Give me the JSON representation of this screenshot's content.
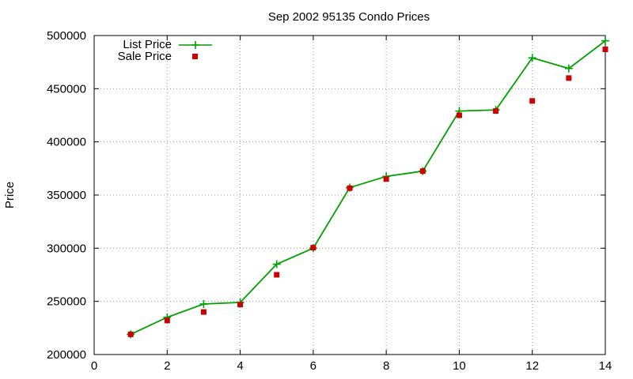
{
  "chart_data": {
    "type": "line",
    "title": "Sep 2002 95135 Condo Prices",
    "xlabel": "",
    "ylabel": "Price",
    "xlim": [
      0,
      14
    ],
    "ylim": [
      200000,
      500000
    ],
    "xticks": [
      "0",
      "2",
      "4",
      "6",
      "8",
      "10",
      "12",
      "14"
    ],
    "yticks": [
      "200000",
      "250000",
      "300000",
      "350000",
      "400000",
      "450000",
      "500000"
    ],
    "grid": true,
    "legend_position": "top-left",
    "series": [
      {
        "name": "List Price",
        "style": "line+cross",
        "color": "#00a000",
        "x": [
          1,
          2,
          3,
          4,
          5,
          6,
          7,
          8,
          9,
          10,
          11,
          12,
          13,
          14
        ],
        "y": [
          219000,
          235000,
          247500,
          249000,
          285000,
          300000,
          357000,
          367500,
          372500,
          429000,
          430000,
          479000,
          469000,
          495000
        ]
      },
      {
        "name": "Sale Price",
        "style": "points-square",
        "color": "#cc0000",
        "x": [
          1,
          2,
          3,
          4,
          5,
          6,
          7,
          8,
          9,
          10,
          11,
          12,
          13,
          14
        ],
        "y": [
          219000,
          232000,
          240000,
          247000,
          275000,
          300500,
          356500,
          365000,
          372500,
          425000,
          429000,
          438500,
          460000,
          487000
        ]
      }
    ]
  }
}
